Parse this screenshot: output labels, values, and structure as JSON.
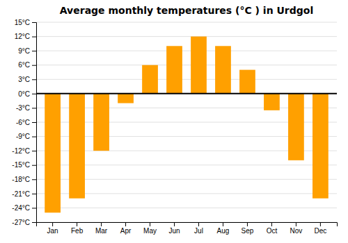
{
  "chart_data": {
    "type": "bar",
    "title": "Average monthly temperatures (°C ) in Urdgol",
    "categories": [
      "Jan",
      "Feb",
      "Mar",
      "Apr",
      "May",
      "Jun",
      "Jul",
      "Aug",
      "Sep",
      "Oct",
      "Nov",
      "Dec"
    ],
    "values": [
      -25,
      -22,
      -12,
      -2,
      6,
      10,
      12,
      10,
      5,
      -3.5,
      -14,
      -22
    ],
    "color": "#FFA000",
    "ylim": [
      -27,
      15
    ],
    "yticks": [
      {
        "value": -27,
        "label": "-27°C"
      },
      {
        "value": -24,
        "label": "-24°C"
      },
      {
        "value": -21,
        "label": "-21°C"
      },
      {
        "value": -18,
        "label": "-18°C"
      },
      {
        "value": -15,
        "label": "-15°C"
      },
      {
        "value": -12,
        "label": "-12°C"
      },
      {
        "value": -9,
        "label": "-9°C"
      },
      {
        "value": -6,
        "label": "-6°C"
      },
      {
        "value": -3,
        "label": "-3°C"
      },
      {
        "value": 0,
        "label": "0°C"
      },
      {
        "value": 3,
        "label": "3°C"
      },
      {
        "value": 6,
        "label": "6°C"
      },
      {
        "value": 9,
        "label": "9°C"
      },
      {
        "value": 12,
        "label": "12°C"
      },
      {
        "value": 15,
        "label": "15°C"
      }
    ],
    "grid": true
  }
}
